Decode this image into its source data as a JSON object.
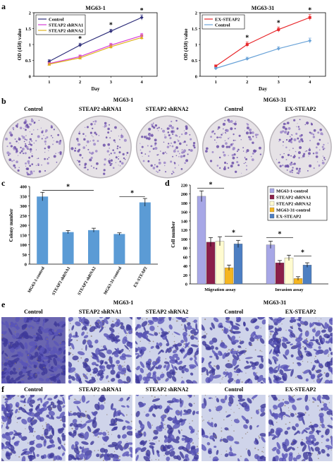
{
  "panels": {
    "a": {
      "label": "a",
      "left": {
        "title": "MG63-1",
        "ylabel": "OD (450) value",
        "xlabel": "Day",
        "ylim": [
          0,
          2
        ],
        "xticks": [
          1,
          2,
          3,
          4
        ],
        "yticks": [
          0,
          0.5,
          1,
          1.5,
          2
        ],
        "ytick_labels": [
          "0",
          "0.5",
          "1",
          "1.5",
          "2"
        ],
        "series": [
          {
            "name": "Control",
            "color": "#2e2e7a",
            "marker": "diamond",
            "values": [
              0.47,
              0.98,
              1.42,
              1.85
            ],
            "err": [
              0.05,
              0.06,
              0.06,
              0.08
            ]
          },
          {
            "name": "STEAP2 shRNA1",
            "color": "#d63bd6",
            "marker": "square",
            "values": [
              0.4,
              0.62,
              0.98,
              1.28
            ],
            "err": [
              0.04,
              0.05,
              0.06,
              0.07
            ]
          },
          {
            "name": "STEAP2 shRNA2",
            "color": "#e0b21e",
            "marker": "triangle",
            "values": [
              0.38,
              0.58,
              0.93,
              1.22
            ],
            "err": [
              0.04,
              0.05,
              0.06,
              0.07
            ]
          }
        ],
        "stars": [
          "*",
          "*",
          "*"
        ]
      },
      "right": {
        "title": "MG63-31",
        "ylabel": "OD (450) value",
        "xlabel": "Day",
        "ylim": [
          0,
          2
        ],
        "xticks": [
          1,
          2,
          3,
          4
        ],
        "yticks": [
          0,
          0.5,
          1,
          1.5,
          2
        ],
        "ytick_labels": [
          "0",
          "0.5",
          "1",
          "1.5",
          "2"
        ],
        "series": [
          {
            "name": "EX-STEAP2",
            "color": "#e8262a",
            "marker": "square",
            "values": [
              0.32,
              1.0,
              1.47,
              1.85
            ],
            "err": [
              0.04,
              0.08,
              0.08,
              0.09
            ]
          },
          {
            "name": "Control",
            "color": "#6aa3d8",
            "marker": "diamond",
            "values": [
              0.25,
              0.55,
              0.87,
              1.12
            ],
            "err": [
              0.03,
              0.05,
              0.06,
              0.08
            ]
          }
        ],
        "stars": [
          "*",
          "*",
          "*"
        ]
      }
    },
    "b": {
      "label": "b",
      "group1": "MG63-1",
      "group2": "MG63-31",
      "plates": [
        "Control",
        "STEAP2 shRNA1",
        "STEAP2 shRNA2",
        "Control",
        "EX-STEAP2"
      ],
      "density": [
        0.55,
        0.22,
        0.32,
        0.18,
        0.5
      ]
    },
    "c": {
      "label": "c",
      "chart_data": {
        "type": "bar",
        "categories": [
          "MG63-1-control",
          "STEAP2 shRNA1",
          "STEAP2 shRNA2",
          "MG63-31-control",
          "EX-STEAP2"
        ],
        "values": [
          348,
          165,
          175,
          155,
          318
        ],
        "err": [
          22,
          8,
          10,
          6,
          20
        ],
        "ylabel": "Colony number",
        "ylim": [
          0,
          400
        ],
        "yticks": [
          0,
          50,
          100,
          150,
          200,
          250,
          300,
          350,
          400
        ],
        "color": "#5b9bd5",
        "stars": [
          "*",
          "*"
        ]
      }
    },
    "d": {
      "label": "d",
      "chart_data": {
        "type": "bar",
        "categories": [
          "Migration assay",
          "Invasion assay"
        ],
        "ylabel": "Cell number",
        "ylim": [
          0,
          220
        ],
        "yticks": [
          0,
          20,
          40,
          60,
          80,
          100,
          120,
          140,
          160,
          180,
          200,
          220
        ],
        "series": [
          {
            "name": "MG63-1-control",
            "color": "#a7a7e6",
            "values": [
              195,
              87
            ],
            "err": [
              12,
              8
            ]
          },
          {
            "name": "STEAP2 shRNA1",
            "color": "#8b1f49",
            "values": [
              93,
              47
            ],
            "err": [
              10,
              5
            ]
          },
          {
            "name": "STEAP2 shRNA2",
            "color": "#fffbd0",
            "values": [
              95,
              58
            ],
            "err": [
              10,
              6
            ]
          },
          {
            "name": "MG63-31-control",
            "color": "#f5b51f",
            "values": [
              36,
              12
            ],
            "err": [
              6,
              4
            ]
          },
          {
            "name": "EX-STEAP2",
            "color": "#4d7fc2",
            "values": [
              89,
              42
            ],
            "err": [
              8,
              5
            ]
          }
        ],
        "stars": [
          "*",
          "*",
          "*",
          "*"
        ]
      }
    },
    "e": {
      "label": "e",
      "group1": "MG63-1",
      "group2": "MG63-31",
      "images": [
        "Control",
        "STEAP2 shRNA1",
        "STEAP2 shRNA2",
        "Control",
        "EX-STEAP2"
      ],
      "density": [
        0.95,
        0.5,
        0.55,
        0.35,
        0.6
      ]
    },
    "f": {
      "label": "f",
      "images": [
        "Control",
        "STEAP2 shRNA1",
        "STEAP2 shRNA2",
        "Control",
        "EX-STEAP2"
      ],
      "density": [
        0.6,
        0.35,
        0.4,
        0.15,
        0.4
      ]
    }
  }
}
